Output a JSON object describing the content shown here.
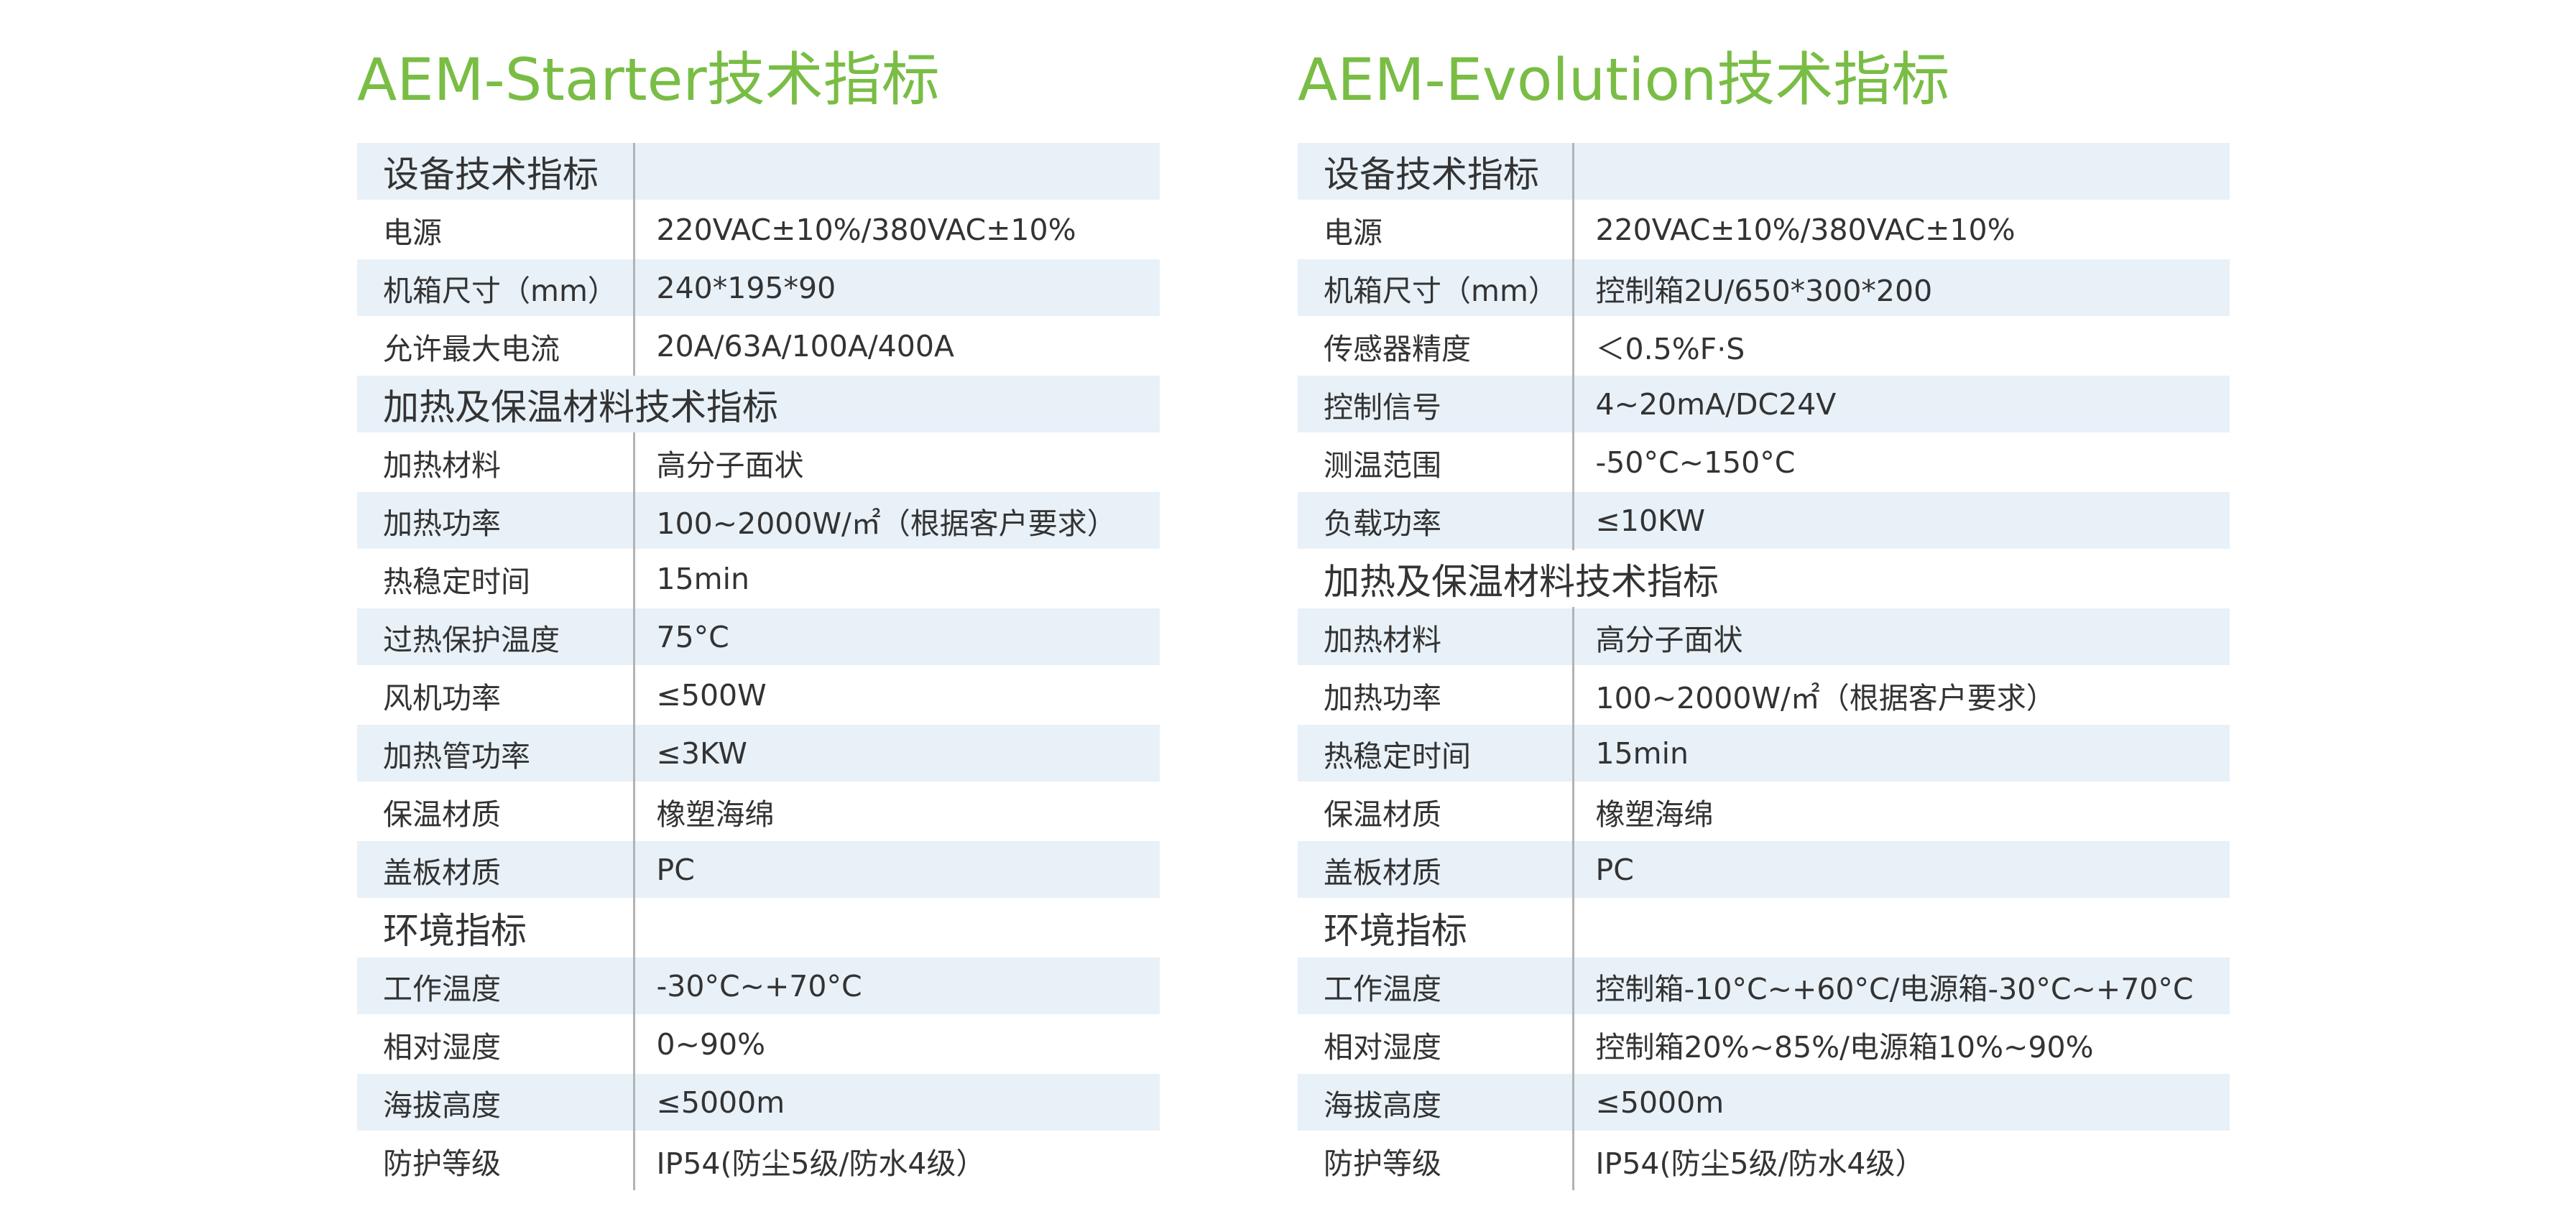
{
  "starter": {
    "title": "AEM-Starter技术指标",
    "sections": {
      "device": "设备技术指标",
      "heating": "加热及保温材料技术指标",
      "environment": "环境指标"
    },
    "rows": [
      {
        "label": "电源",
        "value": "220VAC±10%/380VAC±10%"
      },
      {
        "label": "机箱尺寸（mm）",
        "value": "240*195*90"
      },
      {
        "label": "允许最大电流",
        "value": "20A/63A/100A/400A"
      },
      {
        "label": "加热材料",
        "value": "高分子面状"
      },
      {
        "label": "加热功率",
        "value": "100~2000W/㎡（根据客户要求）"
      },
      {
        "label": "热稳定时间",
        "value": "15min"
      },
      {
        "label": "过热保护温度",
        "value": "75°C"
      },
      {
        "label": "风机功率",
        "value": "≤500W"
      },
      {
        "label": "加热管功率",
        "value": "≤3KW"
      },
      {
        "label": "保温材质",
        "value": "橡塑海绵"
      },
      {
        "label": "盖板材质",
        "value": "PC"
      },
      {
        "label": "工作温度",
        "value": "-30°C~+70°C"
      },
      {
        "label": "相对湿度",
        "value": "0~90%"
      },
      {
        "label": "海拔高度",
        "value": "≤5000m"
      },
      {
        "label": "防护等级",
        "value": "IP54(防尘5级/防水4级）"
      }
    ]
  },
  "evolution": {
    "title": "AEM-Evolution技术指标",
    "sections": {
      "device": "设备技术指标",
      "heating": "加热及保温材料技术指标",
      "environment": "环境指标"
    },
    "rows": [
      {
        "label": "电源",
        "value": "220VAC±10%/380VAC±10%"
      },
      {
        "label": "机箱尺寸（mm）",
        "value": "控制箱2U/650*300*200"
      },
      {
        "label": "传感器精度",
        "value": "＜0.5%F·S"
      },
      {
        "label": "控制信号",
        "value": "4~20mA/DC24V"
      },
      {
        "label": "测温范围",
        "value": "-50°C~150°C"
      },
      {
        "label": "负载功率",
        "value": "≤10KW"
      },
      {
        "label": "加热材料",
        "value": "高分子面状"
      },
      {
        "label": "加热功率",
        "value": "100~2000W/㎡（根据客户要求）"
      },
      {
        "label": "热稳定时间",
        "value": "15min"
      },
      {
        "label": "保温材质",
        "value": "橡塑海绵"
      },
      {
        "label": "盖板材质",
        "value": "PC"
      },
      {
        "label": "工作温度",
        "value": "控制箱-10°C~+60°C/电源箱-30°C~+70°C"
      },
      {
        "label": "相对湿度",
        "value": "控制箱20%~85%/电源箱10%~90%"
      },
      {
        "label": "海拔高度",
        "value": "≤5000m"
      },
      {
        "label": "防护等级",
        "value": "IP54(防尘5级/防水4级）"
      }
    ]
  },
  "theme": {
    "title_color": "#79bd45",
    "row_stripe_color": "#e8f1f8",
    "divider_color": "#b3b3b3"
  }
}
